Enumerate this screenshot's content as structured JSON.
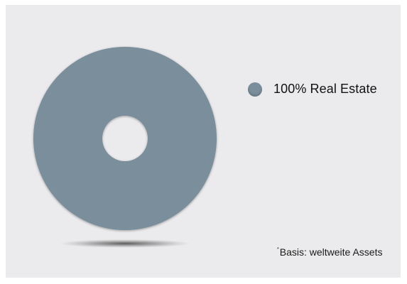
{
  "chart_data": {
    "type": "pie",
    "variant": "donut",
    "slices": [
      {
        "label": "100% Real Estate",
        "value": 100,
        "color": "#7a8e9b"
      }
    ],
    "legend_placement": "right"
  },
  "footnote": {
    "marker": "*",
    "text": "Basis: weltweite Assets"
  }
}
